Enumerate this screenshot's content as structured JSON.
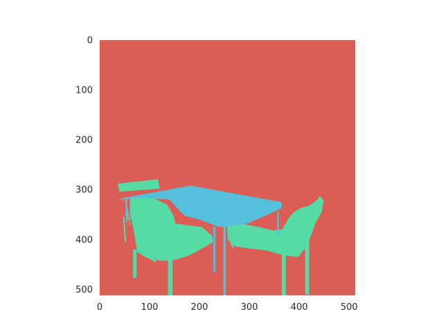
{
  "figure": {
    "type": "segmentation-mask",
    "image_size": [
      512,
      512
    ],
    "colors": {
      "background": "#da5e55",
      "chair": "#55dba5",
      "table": "#55c0db"
    },
    "axes": {
      "x_ticks": [
        "0",
        "100",
        "200",
        "300",
        "400",
        "500"
      ],
      "y_ticks": [
        "0",
        "100",
        "200",
        "300",
        "400",
        "500"
      ],
      "x_tick_values": [
        0,
        100,
        200,
        300,
        400,
        500
      ],
      "y_tick_values": [
        0,
        100,
        200,
        300,
        400,
        500
      ],
      "xlim": [
        0,
        512
      ],
      "ylim": [
        512,
        0
      ],
      "grid": false
    }
  }
}
